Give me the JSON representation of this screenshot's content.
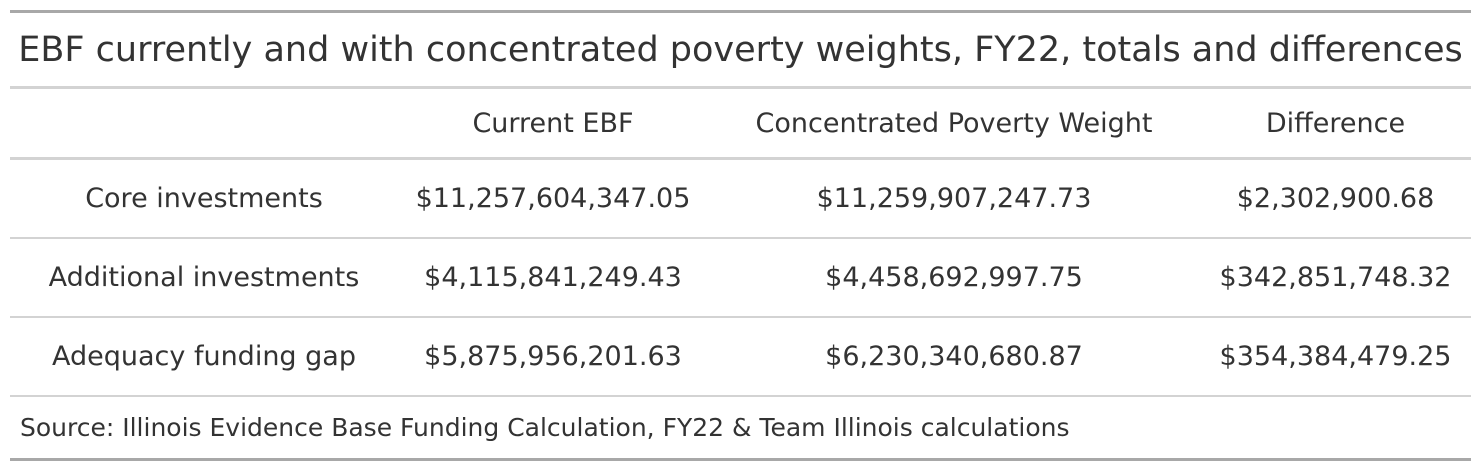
{
  "table": {
    "title": "EBF currently and with concentrated poverty weights, FY22, totals and differences",
    "columns": [
      "",
      "Current EBF",
      "Concentrated Poverty Weight",
      "Difference"
    ],
    "rows": [
      {
        "label": "Core investments",
        "current": "$11,257,604,347.05",
        "cpw": "$11,259,907,247.73",
        "difference": "$2,302,900.68"
      },
      {
        "label": "Additional investments",
        "current": "$4,115,841,249.43",
        "cpw": "$4,458,692,997.75",
        "difference": "$342,851,748.32"
      },
      {
        "label": "Adequacy funding gap",
        "current": "$5,875,956,201.63",
        "cpw": "$6,230,340,680.87",
        "difference": "$354,384,479.25"
      }
    ],
    "source": "Source: Illinois Evidence Base Funding Calculation, FY22 & Team Illinois calculations"
  }
}
